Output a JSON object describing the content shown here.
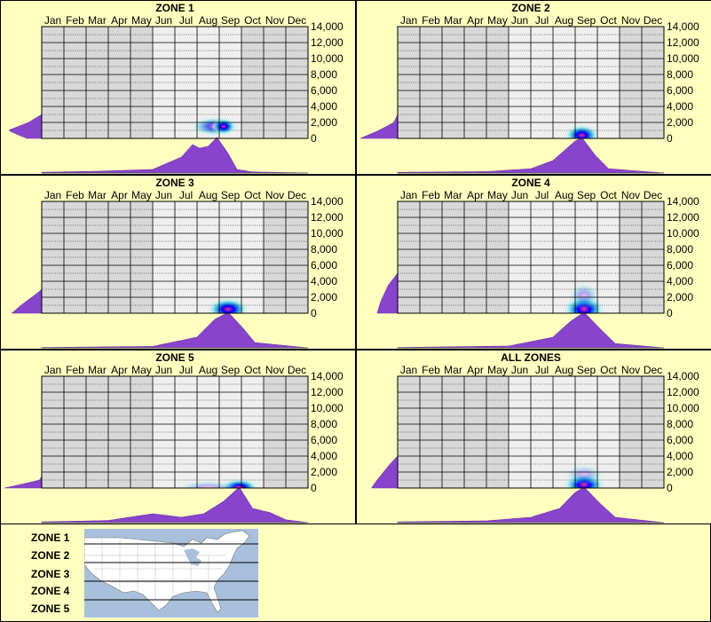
{
  "colors": {
    "background": "#ffffc0",
    "plot_bg": "#d8d8d8",
    "plot_bg_light": "#efefef",
    "grid": "#000000",
    "density": "#8844cc",
    "density_edge": "#6f2fb0",
    "heat_low": "#b8f2f2",
    "heat_mid": "#22aadd",
    "heat_high": "#0000ff",
    "heat_peak": "#ff2299",
    "map_water": "#a8c0dc",
    "map_land": "#ffffff"
  },
  "chart_data": [
    {
      "type": "heatmap",
      "title": "ZONE 1",
      "x": [
        "Jan",
        "Feb",
        "Mar",
        "Apr",
        "May",
        "Jun",
        "Jul",
        "Aug",
        "Sep",
        "Oct",
        "Nov",
        "Dec"
      ],
      "ylim": [
        0,
        14000
      ],
      "yticks": [
        "14,000",
        "12,000",
        "10,000",
        "8,000",
        "6,000",
        "4,000",
        "2,000",
        "0"
      ],
      "hot_spots": [
        {
          "month": 7.8,
          "elevation": 1500,
          "intensity": 0.65,
          "spread_months": 0.7,
          "spread_elev": 450
        },
        {
          "month": 8.2,
          "elevation": 1500,
          "intensity": 1.0,
          "spread_months": 0.35,
          "spread_elev": 350
        }
      ],
      "elevation_density": [
        {
          "elevation": 0,
          "value": 0.4
        },
        {
          "elevation": 1000,
          "value": 0.9
        },
        {
          "elevation": 2000,
          "value": 0.35
        },
        {
          "elevation": 3000,
          "value": 0.0
        }
      ],
      "month_density": [
        {
          "month": 0.0,
          "value": 0.02
        },
        {
          "month": 2.5,
          "value": 0.05
        },
        {
          "month": 5.0,
          "value": 0.1
        },
        {
          "month": 6.3,
          "value": 0.45
        },
        {
          "month": 6.8,
          "value": 0.8
        },
        {
          "month": 7.1,
          "value": 0.7
        },
        {
          "month": 7.5,
          "value": 0.75
        },
        {
          "month": 7.9,
          "value": 1.0
        },
        {
          "month": 8.4,
          "value": 0.55
        },
        {
          "month": 8.8,
          "value": 0.1
        },
        {
          "month": 9.5,
          "value": 0.03
        },
        {
          "month": 12.0,
          "value": 0.0
        }
      ],
      "shaded_months": [
        0,
        1,
        2,
        3,
        4,
        9,
        10,
        11
      ]
    },
    {
      "type": "heatmap",
      "title": "ZONE 2",
      "x": [
        "Jan",
        "Feb",
        "Mar",
        "Apr",
        "May",
        "Jun",
        "Jul",
        "Aug",
        "Sep",
        "Oct",
        "Nov",
        "Dec"
      ],
      "ylim": [
        0,
        14000
      ],
      "yticks": [
        "14,000",
        "12,000",
        "10,000",
        "8,000",
        "6,000",
        "4,000",
        "2,000",
        "0"
      ],
      "hot_spots": [
        {
          "month": 8.3,
          "elevation": 400,
          "intensity": 1.0,
          "spread_months": 0.5,
          "spread_elev": 500
        }
      ],
      "elevation_density": [
        {
          "elevation": 0,
          "value": 1.0
        },
        {
          "elevation": 1000,
          "value": 0.5
        },
        {
          "elevation": 2000,
          "value": 0.1
        },
        {
          "elevation": 3000,
          "value": 0.0
        }
      ],
      "month_density": [
        {
          "month": 0.0,
          "value": 0.02
        },
        {
          "month": 4.0,
          "value": 0.04
        },
        {
          "month": 6.0,
          "value": 0.12
        },
        {
          "month": 7.0,
          "value": 0.35
        },
        {
          "month": 8.0,
          "value": 0.9
        },
        {
          "month": 8.3,
          "value": 1.0
        },
        {
          "month": 8.9,
          "value": 0.5
        },
        {
          "month": 9.5,
          "value": 0.12
        },
        {
          "month": 12.0,
          "value": 0.0
        }
      ],
      "shaded_months": [
        0,
        1,
        2,
        3,
        4,
        10,
        11
      ]
    },
    {
      "type": "heatmap",
      "title": "ZONE 3",
      "x": [
        "Jan",
        "Feb",
        "Mar",
        "Apr",
        "May",
        "Jun",
        "Jul",
        "Aug",
        "Sep",
        "Oct",
        "Nov",
        "Dec"
      ],
      "ylim": [
        0,
        14000
      ],
      "yticks": [
        "14,000",
        "12,000",
        "10,000",
        "8,000",
        "6,000",
        "4,000",
        "2,000",
        "0"
      ],
      "hot_spots": [
        {
          "month": 8.4,
          "elevation": 500,
          "intensity": 1.0,
          "spread_months": 0.6,
          "spread_elev": 550
        }
      ],
      "elevation_density": [
        {
          "elevation": 0,
          "value": 0.8
        },
        {
          "elevation": 1000,
          "value": 0.55
        },
        {
          "elevation": 2500,
          "value": 0.12
        },
        {
          "elevation": 3000,
          "value": 0.0
        }
      ],
      "month_density": [
        {
          "month": 0.0,
          "value": 0.01
        },
        {
          "month": 5.0,
          "value": 0.04
        },
        {
          "month": 7.0,
          "value": 0.3
        },
        {
          "month": 7.8,
          "value": 0.8
        },
        {
          "month": 8.4,
          "value": 1.0
        },
        {
          "month": 9.0,
          "value": 0.6
        },
        {
          "month": 9.6,
          "value": 0.15
        },
        {
          "month": 12.0,
          "value": 0.0
        }
      ],
      "shaded_months": [
        0,
        1,
        2,
        3,
        4,
        10,
        11
      ]
    },
    {
      "type": "heatmap",
      "title": "ZONE 4",
      "x": [
        "Jan",
        "Feb",
        "Mar",
        "Apr",
        "May",
        "Jun",
        "Jul",
        "Aug",
        "Sep",
        "Oct",
        "Nov",
        "Dec"
      ],
      "ylim": [
        0,
        14000
      ],
      "yticks": [
        "14,000",
        "12,000",
        "10,000",
        "8,000",
        "6,000",
        "4,000",
        "2,000",
        "0"
      ],
      "hot_spots": [
        {
          "month": 8.4,
          "elevation": 500,
          "intensity": 1.0,
          "spread_months": 0.6,
          "spread_elev": 700
        },
        {
          "month": 8.4,
          "elevation": 2200,
          "intensity": 0.3,
          "spread_months": 0.45,
          "spread_elev": 700
        }
      ],
      "elevation_density": [
        {
          "elevation": 0,
          "value": 0.55
        },
        {
          "elevation": 1500,
          "value": 0.45
        },
        {
          "elevation": 3500,
          "value": 0.25
        },
        {
          "elevation": 5000,
          "value": 0.0
        }
      ],
      "month_density": [
        {
          "month": 0.0,
          "value": 0.01
        },
        {
          "month": 5.0,
          "value": 0.05
        },
        {
          "month": 7.0,
          "value": 0.3
        },
        {
          "month": 7.8,
          "value": 0.75
        },
        {
          "month": 8.4,
          "value": 1.0
        },
        {
          "month": 9.1,
          "value": 0.55
        },
        {
          "month": 9.8,
          "value": 0.12
        },
        {
          "month": 12.0,
          "value": 0.0
        }
      ],
      "shaded_months": [
        0,
        1,
        2,
        3,
        4,
        10,
        11
      ]
    },
    {
      "type": "heatmap",
      "title": "ZONE 5",
      "x": [
        "Jan",
        "Feb",
        "Mar",
        "Apr",
        "May",
        "Jun",
        "Jul",
        "Aug",
        "Sep",
        "Oct",
        "Nov",
        "Dec"
      ],
      "ylim": [
        0,
        14000
      ],
      "yticks": [
        "14,000",
        "12,000",
        "10,000",
        "8,000",
        "6,000",
        "4,000",
        "2,000",
        "0"
      ],
      "hot_spots": [
        {
          "month": 8.9,
          "elevation": 100,
          "intensity": 1.0,
          "spread_months": 0.55,
          "spread_elev": 350
        },
        {
          "month": 7.5,
          "elevation": 100,
          "intensity": 0.25,
          "spread_months": 0.9,
          "spread_elev": 250
        }
      ],
      "elevation_density": [
        {
          "elevation": 0,
          "value": 1.0
        },
        {
          "elevation": 500,
          "value": 0.5
        },
        {
          "elevation": 1000,
          "value": 0.05
        },
        {
          "elevation": 1500,
          "value": 0.0
        }
      ],
      "month_density": [
        {
          "month": 0.0,
          "value": 0.02
        },
        {
          "month": 3.0,
          "value": 0.06
        },
        {
          "month": 5.0,
          "value": 0.25
        },
        {
          "month": 6.3,
          "value": 0.15
        },
        {
          "month": 7.3,
          "value": 0.25
        },
        {
          "month": 8.2,
          "value": 0.6
        },
        {
          "month": 8.9,
          "value": 1.0
        },
        {
          "month": 9.5,
          "value": 0.4
        },
        {
          "month": 10.3,
          "value": 0.28
        },
        {
          "month": 11.0,
          "value": 0.08
        },
        {
          "month": 12.0,
          "value": 0.0
        }
      ],
      "shaded_months": [
        0,
        1,
        2,
        3,
        4,
        10,
        11
      ]
    },
    {
      "type": "heatmap",
      "title": "ALL ZONES",
      "x": [
        "Jan",
        "Feb",
        "Mar",
        "Apr",
        "May",
        "Jun",
        "Jul",
        "Aug",
        "Sep",
        "Oct",
        "Nov",
        "Dec"
      ],
      "ylim": [
        0,
        14000
      ],
      "yticks": [
        "14,000",
        "12,000",
        "10,000",
        "8,000",
        "6,000",
        "4,000",
        "2,000",
        "0"
      ],
      "hot_spots": [
        {
          "month": 8.4,
          "elevation": 400,
          "intensity": 1.0,
          "spread_months": 0.6,
          "spread_elev": 550
        },
        {
          "month": 8.4,
          "elevation": 1700,
          "intensity": 0.25,
          "spread_months": 0.6,
          "spread_elev": 500
        }
      ],
      "elevation_density": [
        {
          "elevation": 0,
          "value": 0.7
        },
        {
          "elevation": 1000,
          "value": 0.55
        },
        {
          "elevation": 3000,
          "value": 0.2
        },
        {
          "elevation": 4000,
          "value": 0.0
        }
      ],
      "month_density": [
        {
          "month": 0.0,
          "value": 0.02
        },
        {
          "month": 4.0,
          "value": 0.05
        },
        {
          "month": 6.0,
          "value": 0.15
        },
        {
          "month": 7.3,
          "value": 0.4
        },
        {
          "month": 8.0,
          "value": 0.85
        },
        {
          "month": 8.4,
          "value": 1.0
        },
        {
          "month": 9.1,
          "value": 0.55
        },
        {
          "month": 9.8,
          "value": 0.15
        },
        {
          "month": 12.0,
          "value": 0.0
        }
      ],
      "shaded_months": [
        0,
        1,
        2,
        3,
        4,
        10,
        11
      ]
    }
  ],
  "legend": {
    "zones": [
      "ZONE 1",
      "ZONE 2",
      "ZONE 3",
      "ZONE 4",
      "ZONE 5"
    ],
    "map_name": "us-map"
  }
}
